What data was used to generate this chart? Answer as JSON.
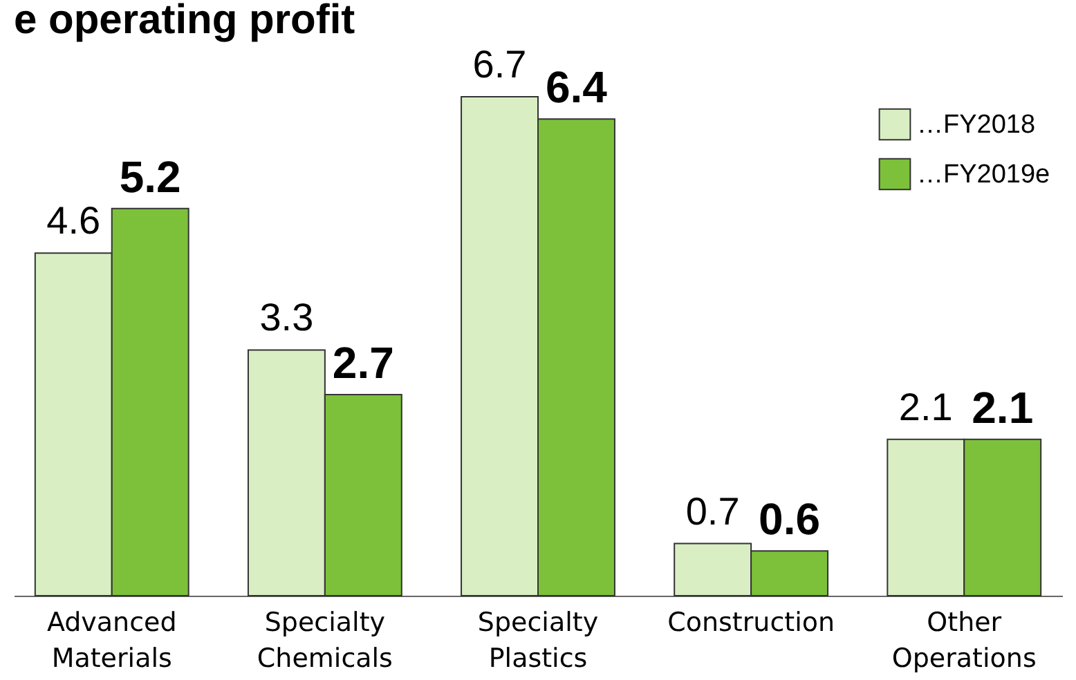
{
  "chart_data": {
    "type": "bar",
    "title": "e operating profit",
    "categories": [
      "Advanced Materials",
      "Specialty Chemicals",
      "Specialty Plastics",
      "Construction",
      "Other Operations"
    ],
    "series": [
      {
        "name": "…FY2018",
        "color": "#d9efc3",
        "values": [
          4.6,
          3.3,
          6.7,
          0.7,
          2.1
        ]
      },
      {
        "name": "…FY2019e",
        "color": "#7dc13a",
        "values": [
          5.2,
          2.7,
          6.4,
          0.6,
          2.1
        ]
      }
    ],
    "data_labels": true,
    "legend": "top right"
  }
}
